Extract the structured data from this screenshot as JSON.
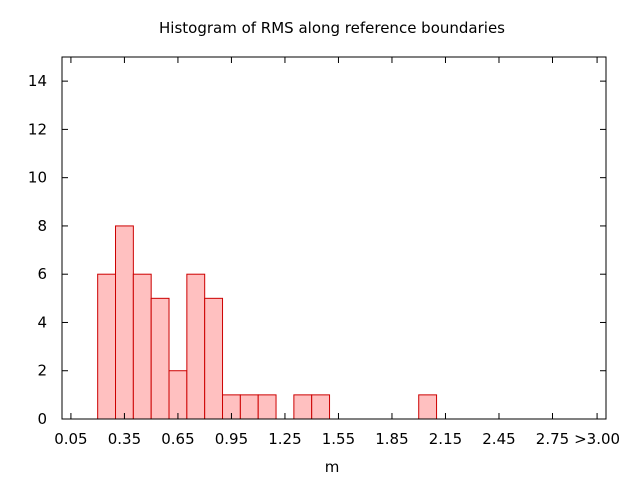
{
  "chart_data": {
    "type": "bar",
    "title": "Histogram of RMS along reference boundaries",
    "xlabel": "m",
    "ylabel": "",
    "bin_width": 0.1,
    "xlim": [
      0.0,
      3.05
    ],
    "ylim": [
      0,
      15
    ],
    "x_ticks": [
      0.05,
      0.35,
      0.65,
      0.95,
      1.25,
      1.55,
      1.85,
      2.15,
      2.45,
      2.75,
      3.0
    ],
    "x_tick_labels": [
      "0.05",
      "0.35",
      "0.65",
      "0.95",
      "1.25",
      "1.55",
      "1.85",
      "2.15",
      "2.45",
      "2.75",
      ">3.00"
    ],
    "y_ticks": [
      0,
      2,
      4,
      6,
      8,
      10,
      12,
      14
    ],
    "y_tick_labels": [
      "0",
      "2",
      "4",
      "6",
      "8",
      "10",
      "12",
      "14"
    ],
    "bins": [
      {
        "center": 0.25,
        "value": 6
      },
      {
        "center": 0.35,
        "value": 8
      },
      {
        "center": 0.45,
        "value": 6
      },
      {
        "center": 0.55,
        "value": 5
      },
      {
        "center": 0.65,
        "value": 2
      },
      {
        "center": 0.75,
        "value": 6
      },
      {
        "center": 0.85,
        "value": 5
      },
      {
        "center": 0.95,
        "value": 1
      },
      {
        "center": 1.05,
        "value": 1
      },
      {
        "center": 1.15,
        "value": 1
      },
      {
        "center": 1.35,
        "value": 1
      },
      {
        "center": 1.45,
        "value": 1
      },
      {
        "center": 2.05,
        "value": 1
      }
    ],
    "bar_fill": "#ffc0c0",
    "bar_stroke": "#cc0000",
    "grid": false,
    "legend": "none"
  }
}
